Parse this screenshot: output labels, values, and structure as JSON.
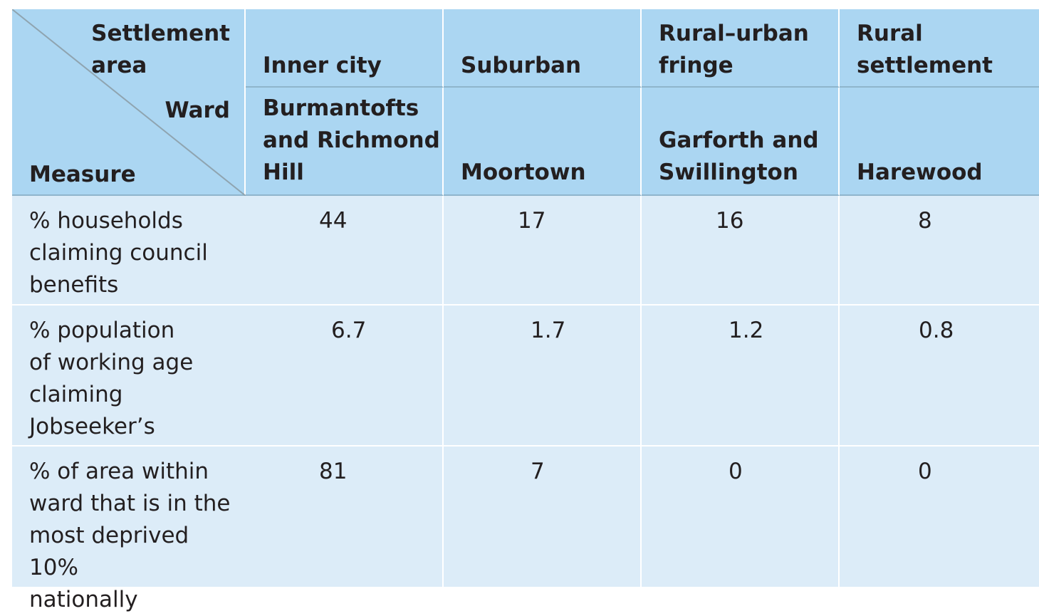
{
  "corner": {
    "settlement_area": "Settlement\narea",
    "ward": "Ward",
    "measure": "Measure"
  },
  "settlement_areas": [
    "Inner city",
    "Suburban",
    "Rural–urban\nfringe",
    "Rural\nsettlement"
  ],
  "wards": [
    "Burmantofts\nand Richmond\nHill",
    "Moortown",
    "Garforth and\nSwillington",
    "Harewood"
  ],
  "rows": [
    {
      "measure": "% households\nclaiming council\nbenefits",
      "values": [
        "44",
        "17",
        "16",
        "8"
      ]
    },
    {
      "measure": "% population\nof working age\nclaiming Jobseeker’s\nAllowance",
      "values": [
        "6.7",
        "1.7",
        "1.2",
        "0.8"
      ]
    },
    {
      "measure": "% of area within\nward that is in the\nmost deprived 10%\nnationally",
      "values": [
        "81",
        "7",
        "0",
        "0"
      ]
    }
  ],
  "colors": {
    "header_bg": "#abd6f2",
    "body_bg": "#dcecf8",
    "text": "#231f20",
    "diagonal": "#8fa4b0"
  }
}
